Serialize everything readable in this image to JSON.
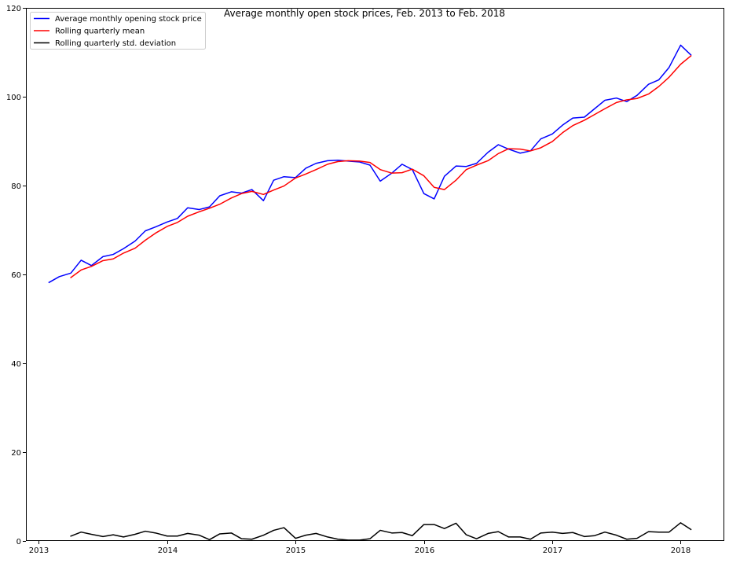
{
  "chart_data": {
    "type": "line",
    "title": "Average monthly open stock prices, Feb. 2013 to Feb. 2018",
    "xlabel": "",
    "ylabel": "",
    "xlim": [
      2012.9,
      2018.34
    ],
    "ylim": [
      0,
      120
    ],
    "x_ticks": [
      2013,
      2014,
      2015,
      2016,
      2017,
      2018
    ],
    "x_tick_labels": [
      "2013",
      "2014",
      "2015",
      "2016",
      "2017",
      "2018"
    ],
    "y_ticks": [
      0,
      20,
      40,
      60,
      80,
      100,
      120
    ],
    "y_tick_labels": [
      "0",
      "20",
      "40",
      "60",
      "80",
      "100",
      "120"
    ],
    "grid": false,
    "legend_position": "top-left",
    "x": [
      2013.08,
      2013.16,
      2013.25,
      2013.33,
      2013.41,
      2013.5,
      2013.58,
      2013.66,
      2013.75,
      2013.83,
      2013.91,
      2014.0,
      2014.08,
      2014.16,
      2014.25,
      2014.33,
      2014.41,
      2014.5,
      2014.58,
      2014.66,
      2014.75,
      2014.83,
      2014.91,
      2015.0,
      2015.08,
      2015.16,
      2015.25,
      2015.33,
      2015.41,
      2015.5,
      2015.58,
      2015.66,
      2015.75,
      2015.83,
      2015.91,
      2016.0,
      2016.08,
      2016.16,
      2016.25,
      2016.33,
      2016.41,
      2016.5,
      2016.58,
      2016.66,
      2016.75,
      2016.83,
      2016.91,
      2017.0,
      2017.08,
      2017.16,
      2017.25,
      2017.33,
      2017.41,
      2017.5,
      2017.58,
      2017.66,
      2017.75,
      2017.83,
      2017.91,
      2018.0,
      2018.08
    ],
    "series": [
      {
        "name": "Average monthly opening stock price",
        "color": "#0000ff",
        "values": [
          58.2,
          59.5,
          60.3,
          63.2,
          62.0,
          64.0,
          64.5,
          65.8,
          67.5,
          69.8,
          70.7,
          71.8,
          72.6,
          75.0,
          74.6,
          75.2,
          77.7,
          78.6,
          78.3,
          79.1,
          76.6,
          81.2,
          82.0,
          81.8,
          83.9,
          85.0,
          85.6,
          85.7,
          85.5,
          85.3,
          84.6,
          81.0,
          82.8,
          84.8,
          83.6,
          78.2,
          77.0,
          82.1,
          84.4,
          84.3,
          85.0,
          87.5,
          89.2,
          88.2,
          87.3,
          87.8,
          90.5,
          91.6,
          93.6,
          95.2,
          95.4,
          97.3,
          99.2,
          99.7,
          98.9,
          100.3,
          102.8,
          103.8,
          106.6,
          111.6,
          109.4
        ]
      },
      {
        "name": "Rolling quarterly mean",
        "color": "#ff0000",
        "values": [
          null,
          null,
          59.3,
          61.0,
          61.8,
          63.1,
          63.5,
          64.8,
          65.9,
          67.7,
          69.3,
          70.8,
          71.7,
          73.1,
          74.1,
          74.9,
          75.8,
          77.2,
          78.2,
          78.7,
          78.0,
          79.0,
          79.9,
          81.7,
          82.6,
          83.6,
          84.8,
          85.4,
          85.6,
          85.5,
          85.2,
          83.6,
          82.8,
          82.9,
          83.7,
          82.2,
          79.6,
          79.1,
          81.2,
          83.6,
          84.6,
          85.6,
          87.2,
          88.3,
          88.2,
          87.8,
          88.5,
          89.9,
          91.9,
          93.5,
          94.7,
          96.0,
          97.3,
          98.7,
          99.3,
          99.6,
          100.6,
          102.3,
          104.4,
          107.3,
          109.2
        ]
      },
      {
        "name": "Rolling quarterly std. deviation",
        "color": "#000000",
        "values": [
          null,
          null,
          1.1,
          2.0,
          1.5,
          1.0,
          1.4,
          0.9,
          1.5,
          2.2,
          1.8,
          1.1,
          1.1,
          1.7,
          1.3,
          0.3,
          1.6,
          1.8,
          0.5,
          0.4,
          1.3,
          2.4,
          3.0,
          0.6,
          1.3,
          1.7,
          0.9,
          0.4,
          0.2,
          0.2,
          0.5,
          2.4,
          1.8,
          1.9,
          1.2,
          3.7,
          3.7,
          2.8,
          4.0,
          1.4,
          0.5,
          1.7,
          2.1,
          0.9,
          0.9,
          0.4,
          1.8,
          2.0,
          1.7,
          1.9,
          1.0,
          1.2,
          2.0,
          1.3,
          0.4,
          0.6,
          2.1,
          2.0,
          2.0,
          4.1,
          2.6
        ]
      }
    ]
  }
}
